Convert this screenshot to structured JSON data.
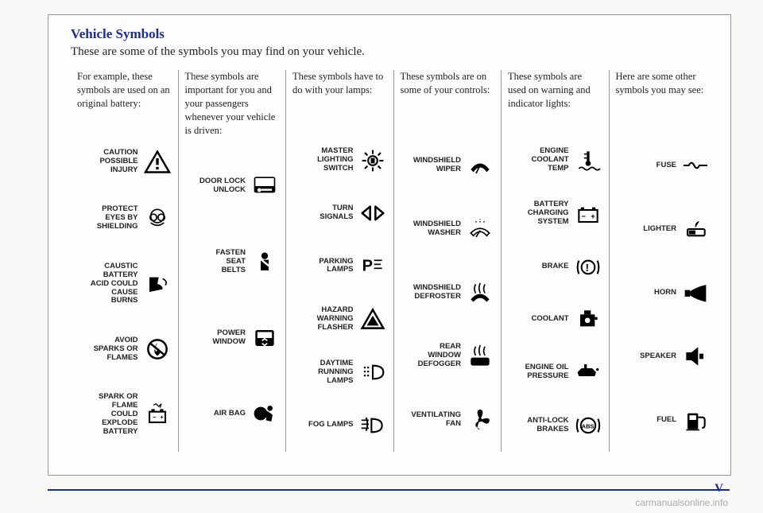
{
  "title": "Vehicle Symbols",
  "subtitle": "These are some of the symbols you may find on your vehicle.",
  "columns": [
    {
      "head": "For example, these symbols are used on an original battery:",
      "items": [
        {
          "label": "CAUTION\nPOSSIBLE\nINJURY",
          "icon": "caution"
        },
        {
          "label": "PROTECT\nEYES BY\nSHIELDING",
          "icon": "goggles"
        },
        {
          "label": "CAUSTIC\nBATTERY\nACID COULD\nCAUSE\nBURNS",
          "icon": "acid"
        },
        {
          "label": "AVOID\nSPARKS OR\nFLAMES",
          "icon": "noflame"
        },
        {
          "label": "SPARK OR\nFLAME\nCOULD\nEXPLODE\nBATTERY",
          "icon": "batteryspark"
        }
      ]
    },
    {
      "head": "These symbols are important for you and your passengers whenever your vehicle is driven:",
      "items": [
        {
          "label": "DOOR LOCK\nUNLOCK",
          "icon": "doorlock"
        },
        {
          "label": "FASTEN\nSEAT\nBELTS",
          "icon": "seatbelt"
        },
        {
          "label": "POWER\nWINDOW",
          "icon": "powerwindow"
        },
        {
          "label": "AIR BAG",
          "icon": "airbag"
        }
      ]
    },
    {
      "head": "These symbols have to do with your lamps:",
      "items": [
        {
          "label": "MASTER\nLIGHTING\nSWITCH",
          "icon": "lightswitch"
        },
        {
          "label": "TURN\nSIGNALS",
          "icon": "turnsignals"
        },
        {
          "label": "PARKING\nLAMPS",
          "icon": "parking"
        },
        {
          "label": "HAZARD\nWARNING\nFLASHER",
          "icon": "hazard"
        },
        {
          "label": "DAYTIME\nRUNNING\nLAMPS",
          "icon": "drl"
        },
        {
          "label": "FOG LAMPS",
          "icon": "foglamps"
        }
      ]
    },
    {
      "head": "These symbols are on some of your controls:",
      "items": [
        {
          "label": "WINDSHIELD\nWIPER",
          "icon": "wiper"
        },
        {
          "label": "WINDSHIELD\nWASHER",
          "icon": "washer"
        },
        {
          "label": "WINDSHIELD\nDEFROSTER",
          "icon": "defrostfront"
        },
        {
          "label": "REAR\nWINDOW\nDEFOGGER",
          "icon": "defrostrear"
        },
        {
          "label": "VENTILATING\nFAN",
          "icon": "fan"
        }
      ]
    },
    {
      "head": "These symbols are used on warning and indicator lights:",
      "items": [
        {
          "label": "ENGINE\nCOOLANT\nTEMP",
          "icon": "coolanttemp"
        },
        {
          "label": "BATTERY\nCHARGING\nSYSTEM",
          "icon": "battery"
        },
        {
          "label": "BRAKE",
          "icon": "brake"
        },
        {
          "label": "COOLANT",
          "icon": "coolant"
        },
        {
          "label": "ENGINE OIL\nPRESSURE",
          "icon": "oil"
        },
        {
          "label": "ANTI-LOCK\nBRAKES",
          "icon": "abs"
        }
      ]
    },
    {
      "head": "Here are some other symbols you may see:",
      "items": [
        {
          "label": "FUSE",
          "icon": "fuse"
        },
        {
          "label": "LIGHTER",
          "icon": "lighter"
        },
        {
          "label": "HORN",
          "icon": "horn"
        },
        {
          "label": "SPEAKER",
          "icon": "speaker"
        },
        {
          "label": "FUEL",
          "icon": "fuel"
        }
      ]
    }
  ],
  "page_num": "V",
  "watermark": "carmanualsonline.info",
  "colors": {
    "title": "#1a2f8f",
    "text": "#222",
    "border": "#999",
    "bg": "#fdfdfd"
  }
}
